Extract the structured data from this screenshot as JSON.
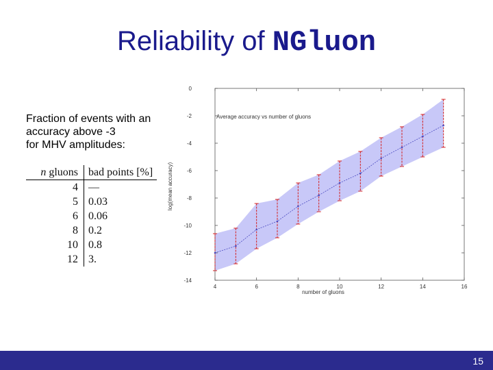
{
  "slide": {
    "title_text": "Reliability of ",
    "title_code": "NGluon",
    "description": [
      "Fraction of events with an",
      "accuracy above -3",
      "for MHV amplitudes:"
    ],
    "table": {
      "header_n_italic": "n",
      "header_n_rest": " gluons",
      "header_bad": "bad points [%]",
      "rows": [
        {
          "n": "4",
          "bad": "—"
        },
        {
          "n": "5",
          "bad": "0.03"
        },
        {
          "n": "6",
          "bad": "0.06"
        },
        {
          "n": "8",
          "bad": "0.2"
        },
        {
          "n": "10",
          "bad": "0.8"
        },
        {
          "n": "12",
          "bad": "3."
        }
      ]
    },
    "page_number": "15",
    "colors": {
      "title": "#1a1a8c",
      "footer": "#2b2b8e",
      "band": "#c8c8f8",
      "errorbar": "#d42020",
      "line": "#4a4ac0"
    }
  },
  "chart_data": {
    "type": "line",
    "title": "",
    "xlabel": "number of gluons",
    "ylabel": "log(mean accuracy)",
    "legend": "Average accuracy vs number of gluons",
    "legend_placement": "top-left",
    "xlim": [
      4,
      16
    ],
    "ylim": [
      -14,
      0
    ],
    "xticks": [
      4,
      6,
      8,
      10,
      12,
      14,
      16
    ],
    "yticks": [
      0,
      -2,
      -4,
      -6,
      -8,
      -10,
      -12,
      -14
    ],
    "series": [
      {
        "name": "Average accuracy vs number of gluons",
        "x": [
          4,
          5,
          6,
          7,
          8,
          9,
          10,
          11,
          12,
          13,
          14,
          15
        ],
        "y": [
          -12.0,
          -11.5,
          -10.3,
          -9.7,
          -8.6,
          -7.8,
          -6.9,
          -6.2,
          -5.1,
          -4.3,
          -3.5,
          -2.7
        ],
        "lower": [
          -13.3,
          -12.8,
          -11.7,
          -10.9,
          -9.9,
          -9.0,
          -8.2,
          -7.5,
          -6.4,
          -5.7,
          -5.0,
          -4.3
        ],
        "upper": [
          -10.6,
          -10.2,
          -8.4,
          -8.1,
          -6.9,
          -6.3,
          -5.3,
          -4.6,
          -3.6,
          -2.8,
          -1.9,
          -0.8
        ]
      }
    ]
  }
}
